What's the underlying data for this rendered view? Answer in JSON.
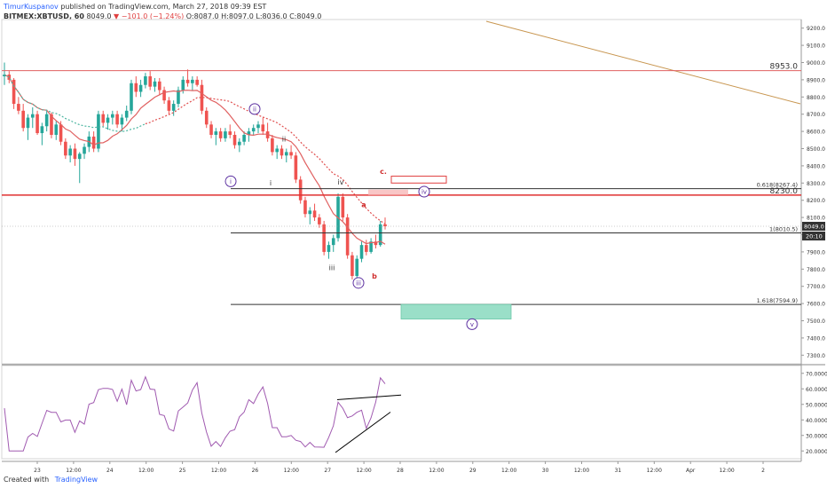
{
  "header": {
    "author": "TimurKuspanov",
    "published": "published on TradingView.com, March 27, 2018 09:39 EST",
    "symbol": "BITMEX:XBTUSD, 60",
    "last": "8049.0",
    "change": "▼ −101.0 (−1.24%)",
    "ohlc": "O:8087.0 H:8097.0 L:8036.0 C:8049.0"
  },
  "footer": {
    "created_with": "Created with",
    "brand": "TradingView"
  },
  "chart_data": {
    "type": "candlestick",
    "title": "",
    "price_axis": {
      "range": [
        7250,
        9250
      ],
      "ticks": [
        "9200.0",
        "9100.0",
        "9000.0",
        "8900.0",
        "8800.0",
        "8700.0",
        "8600.0",
        "8500.0",
        "8400.0",
        "8300.0",
        "8200.0",
        "8100.0",
        "8000.0",
        "7900.0",
        "7800.0",
        "7700.0",
        "7600.0",
        "7500.0",
        "7400.0",
        "7300.0"
      ]
    },
    "price_labels": {
      "last": "8049.0",
      "countdown": "20:10"
    },
    "time_axis": {
      "ticks": [
        "23",
        "12:00",
        "24",
        "12:00",
        "25",
        "12:00",
        "26",
        "12:00",
        "27",
        "12:00",
        "28",
        "12:00",
        "29",
        "12:00",
        "30",
        "12:00",
        "31",
        "12:00",
        "Apr",
        "12:00",
        "2"
      ]
    },
    "candles_approx": [
      [
        8920,
        9000,
        8870,
        8930
      ],
      [
        8930,
        8950,
        8880,
        8900
      ],
      [
        8900,
        8910,
        8730,
        8760
      ],
      [
        8760,
        8800,
        8700,
        8720
      ],
      [
        8720,
        8760,
        8600,
        8620
      ],
      [
        8620,
        8700,
        8550,
        8680
      ],
      [
        8680,
        8740,
        8620,
        8700
      ],
      [
        8700,
        8720,
        8580,
        8590
      ],
      [
        8590,
        8650,
        8520,
        8630
      ],
      [
        8630,
        8720,
        8600,
        8700
      ],
      [
        8700,
        8710,
        8560,
        8580
      ],
      [
        8580,
        8660,
        8550,
        8640
      ],
      [
        8640,
        8660,
        8520,
        8540
      ],
      [
        8540,
        8560,
        8440,
        8460
      ],
      [
        8460,
        8520,
        8420,
        8500
      ],
      [
        8500,
        8530,
        8400,
        8440
      ],
      [
        8440,
        8480,
        8300,
        8470
      ],
      [
        8470,
        8530,
        8440,
        8510
      ],
      [
        8510,
        8600,
        8480,
        8570
      ],
      [
        8570,
        8600,
        8480,
        8500
      ],
      [
        8500,
        8720,
        8480,
        8700
      ],
      [
        8700,
        8720,
        8630,
        8650
      ],
      [
        8650,
        8700,
        8610,
        8680
      ],
      [
        8680,
        8720,
        8640,
        8700
      ],
      [
        8700,
        8720,
        8620,
        8640
      ],
      [
        8640,
        8700,
        8600,
        8680
      ],
      [
        8680,
        8750,
        8660,
        8720
      ],
      [
        8720,
        8900,
        8700,
        8880
      ],
      [
        8880,
        8920,
        8800,
        8830
      ],
      [
        8830,
        8900,
        8800,
        8870
      ],
      [
        8870,
        8940,
        8850,
        8920
      ],
      [
        8920,
        8950,
        8840,
        8860
      ],
      [
        8860,
        8910,
        8830,
        8890
      ],
      [
        8890,
        8910,
        8810,
        8840
      ],
      [
        8840,
        8860,
        8760,
        8780
      ],
      [
        8780,
        8800,
        8700,
        8720
      ],
      [
        8720,
        8780,
        8690,
        8760
      ],
      [
        8760,
        8860,
        8740,
        8840
      ],
      [
        8840,
        8920,
        8820,
        8900
      ],
      [
        8900,
        8960,
        8860,
        8880
      ],
      [
        8880,
        8920,
        8840,
        8900
      ],
      [
        8900,
        8920,
        8860,
        8870
      ],
      [
        8870,
        8900,
        8700,
        8720
      ],
      [
        8720,
        8740,
        8620,
        8640
      ],
      [
        8640,
        8660,
        8560,
        8580
      ],
      [
        8580,
        8620,
        8520,
        8600
      ],
      [
        8600,
        8620,
        8540,
        8560
      ],
      [
        8560,
        8620,
        8540,
        8600
      ],
      [
        8600,
        8640,
        8560,
        8580
      ],
      [
        8580,
        8600,
        8500,
        8520
      ],
      [
        8520,
        8560,
        8480,
        8540
      ],
      [
        8540,
        8600,
        8520,
        8580
      ],
      [
        8580,
        8620,
        8540,
        8600
      ],
      [
        8600,
        8640,
        8580,
        8620
      ],
      [
        8620,
        8660,
        8590,
        8640
      ],
      [
        8640,
        8680,
        8580,
        8600
      ],
      [
        8600,
        8650,
        8540,
        8560
      ],
      [
        8560,
        8580,
        8460,
        8480
      ],
      [
        8480,
        8520,
        8440,
        8500
      ],
      [
        8500,
        8520,
        8440,
        8460
      ],
      [
        8460,
        8500,
        8420,
        8480
      ],
      [
        8480,
        8520,
        8440,
        8460
      ],
      [
        8460,
        8480,
        8300,
        8320
      ],
      [
        8320,
        8340,
        8180,
        8200
      ],
      [
        8200,
        8220,
        8100,
        8120
      ],
      [
        8120,
        8160,
        8060,
        8140
      ],
      [
        8140,
        8180,
        8080,
        8100
      ],
      [
        8100,
        8120,
        8040,
        8060
      ],
      [
        8060,
        8080,
        7880,
        7900
      ],
      [
        7900,
        7960,
        7860,
        7940
      ],
      [
        7940,
        8000,
        7900,
        7980
      ],
      [
        7980,
        8240,
        7960,
        8220
      ],
      [
        8220,
        8240,
        8080,
        8100
      ],
      [
        8100,
        8120,
        7860,
        7880
      ],
      [
        7880,
        7900,
        7740,
        7760
      ],
      [
        7760,
        7880,
        7740,
        7860
      ],
      [
        7860,
        7960,
        7840,
        7940
      ],
      [
        7940,
        7970,
        7880,
        7900
      ],
      [
        7900,
        7980,
        7890,
        7960
      ],
      [
        7960,
        8000,
        7920,
        7940
      ],
      [
        7940,
        8080,
        7930,
        8060
      ],
      [
        8060,
        8100,
        8030,
        8049
      ]
    ],
    "indicators": [
      {
        "name": "",
        "type": "moving_average",
        "style": "solid",
        "color": "#e06060"
      },
      {
        "name": "",
        "type": "moving_average",
        "style": "dotted",
        "color": "#e05050"
      },
      {
        "name": "",
        "type": "moving_average",
        "style": "dotted",
        "color": "#4ab5a0"
      }
    ],
    "levels": [
      {
        "price": 8953.0,
        "label": "8953.0",
        "color": "#e06060"
      },
      {
        "price": 8230.0,
        "label": "8230.0",
        "color": "#e03030"
      },
      {
        "price": 8267.4,
        "label": "0.618(8267.4)",
        "color": "#333333"
      },
      {
        "price": 8010.5,
        "label": "1(8010.5)",
        "color": "#333333"
      },
      {
        "price": 7594.9,
        "label": "1.618(7594.9)",
        "color": "#333333"
      }
    ],
    "wave_labels": [
      "i",
      "ii",
      "iii",
      "iv",
      "v",
      "i",
      "ii",
      "iii",
      "iv",
      "a",
      "b",
      "c."
    ],
    "oscillator": {
      "name": "",
      "range": [
        15,
        75
      ],
      "ticks": [
        "70.0000",
        "60.0000",
        "50.0000",
        "40.0000",
        "30.0000",
        "20.0000"
      ]
    },
    "colors": {
      "up": "#26a69a",
      "down": "#ef5350",
      "trendline": "#c89650",
      "target_zone": "#9adfc8"
    }
  }
}
